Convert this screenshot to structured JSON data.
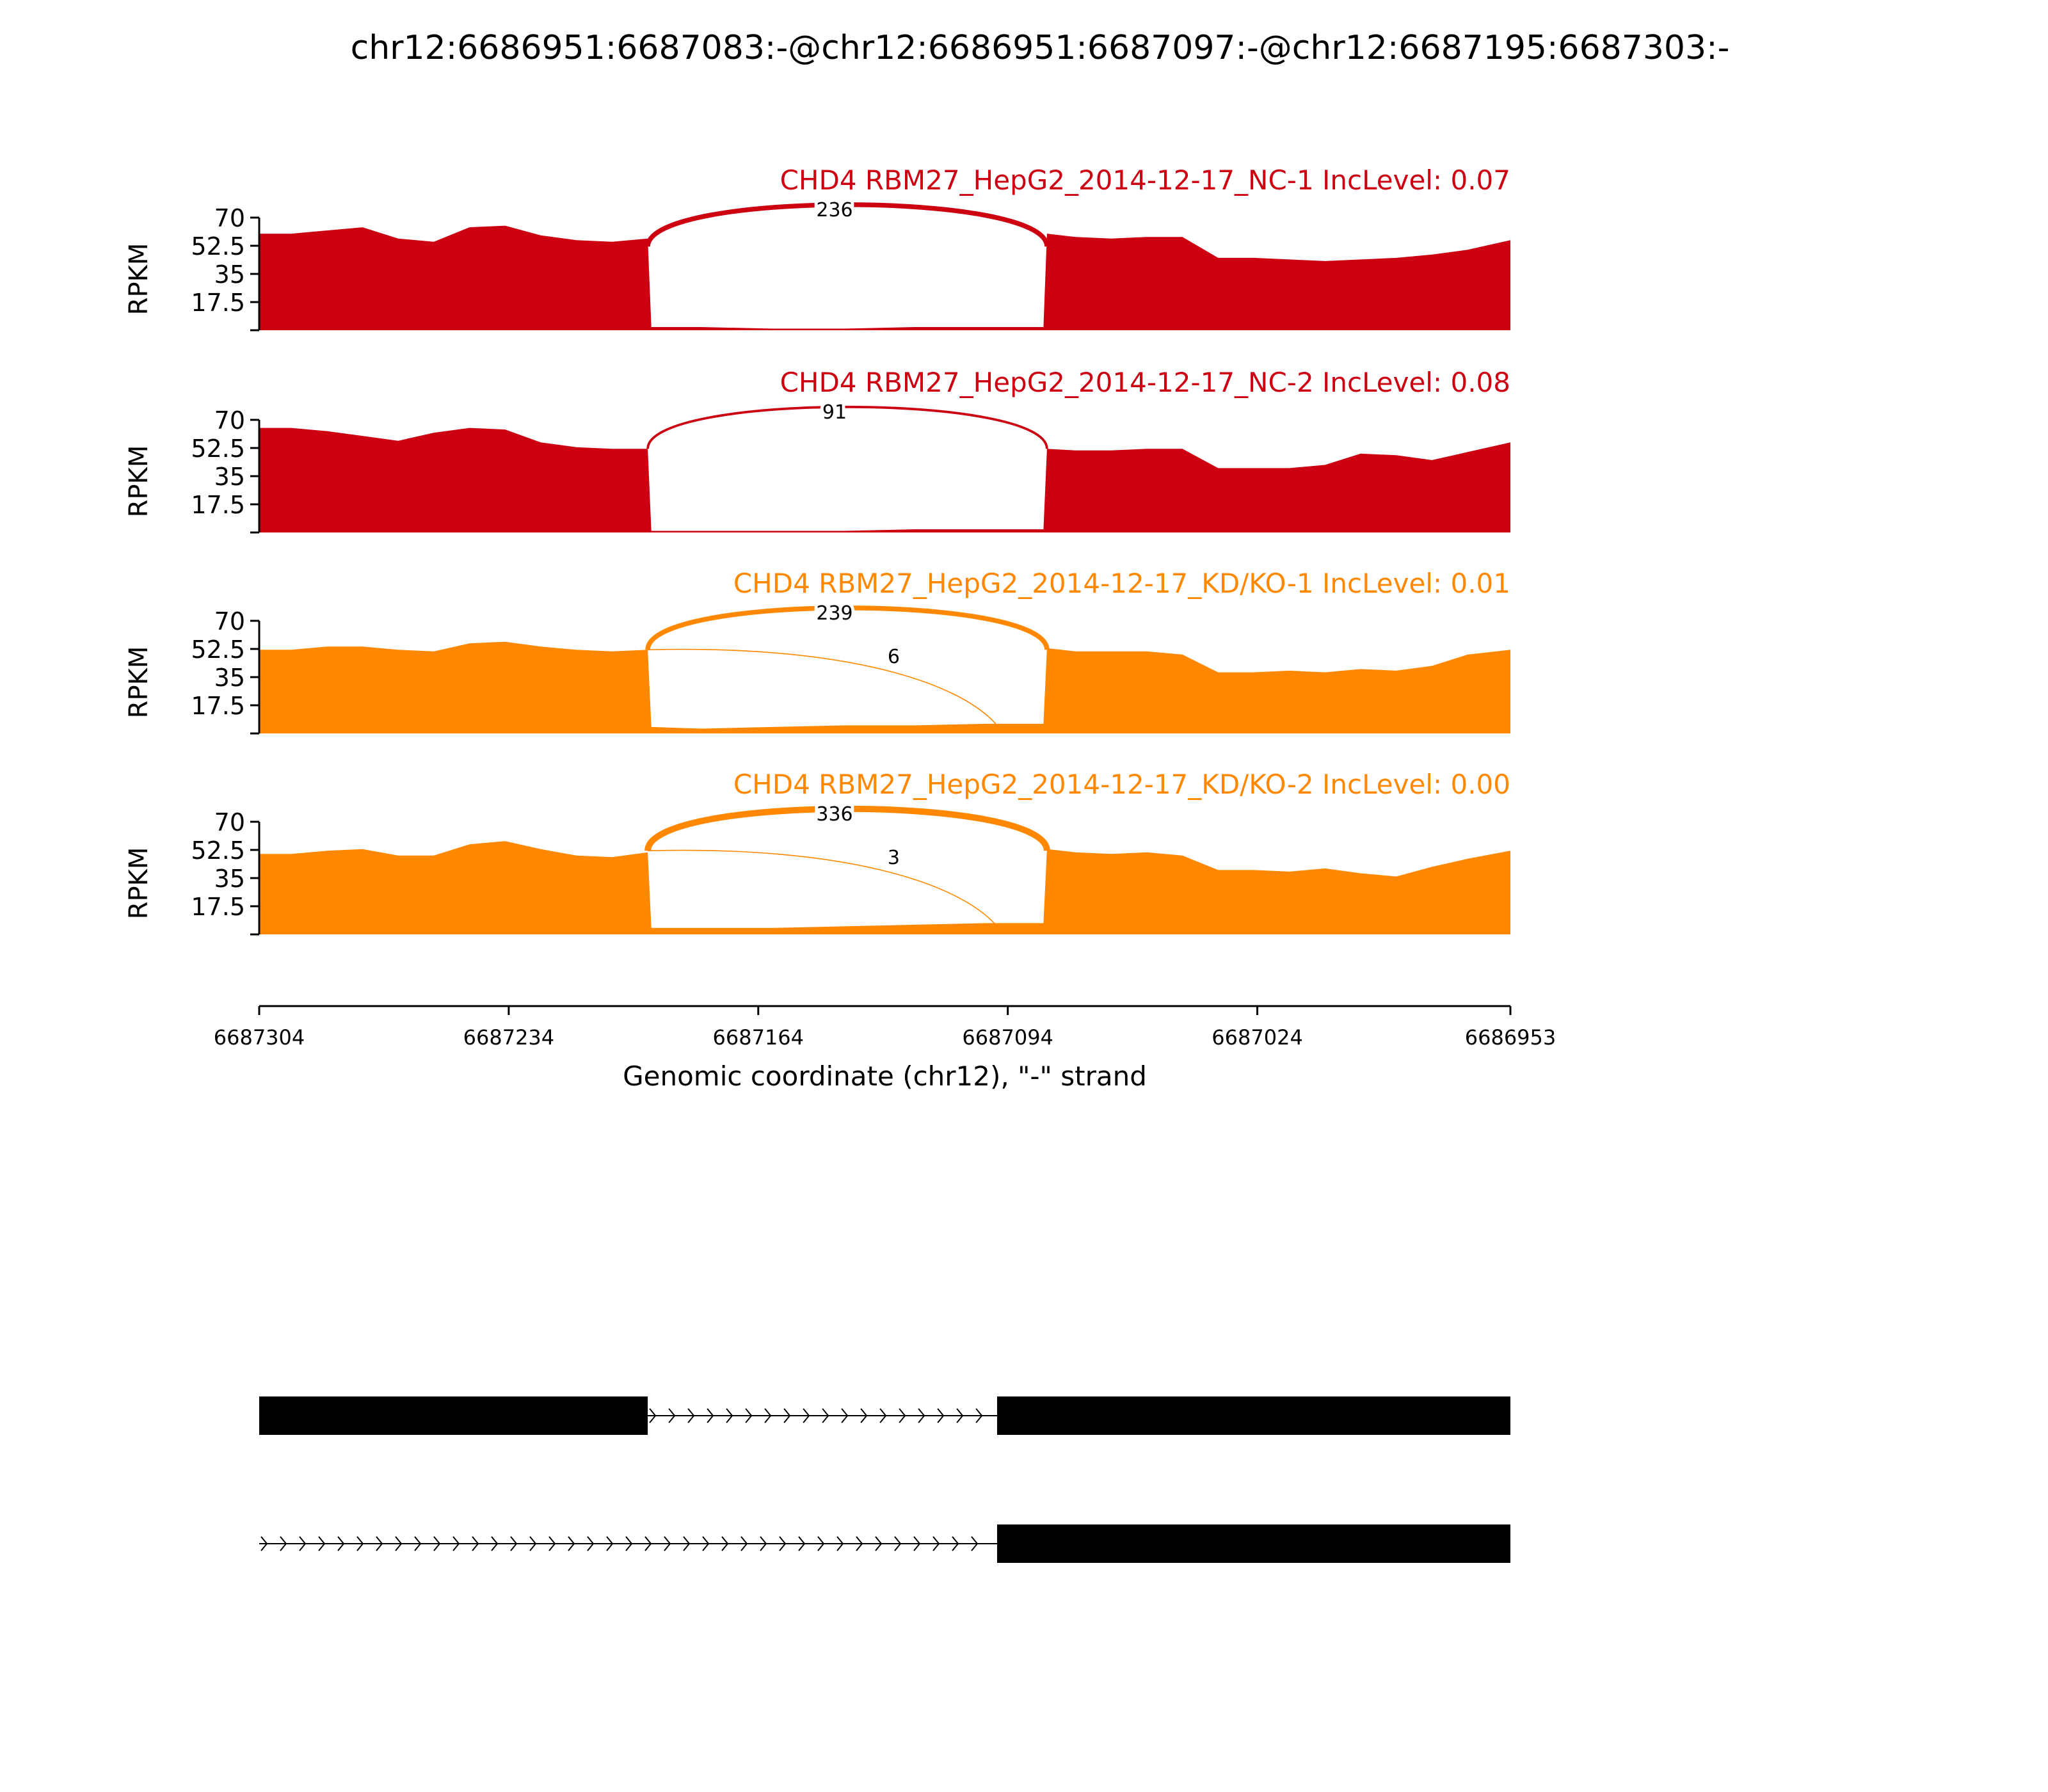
{
  "figure": {
    "title": "chr12:6686951:6687083:-@chr12:6686951:6687097:-@chr12:6687195:6687303:-"
  },
  "colors": {
    "control": "#CC0011",
    "knockdown": "#FF8800",
    "axis": "#000000",
    "gene": "#000000"
  },
  "chart_data": {
    "type": "area",
    "subtype": "sashimi",
    "x_axis": {
      "label": "Genomic coordinate (chr12), \"-\" strand",
      "start": 6687304,
      "end": 6686953,
      "reversed": true,
      "ticks": [
        6687304,
        6687234,
        6687164,
        6687094,
        6687024,
        6686953
      ],
      "tick_labels": [
        "6687304",
        "6687234",
        "6687164",
        "6687094",
        "6687024",
        "6686953"
      ]
    },
    "y_axis": {
      "label": "RPKM",
      "range": [
        0,
        70
      ],
      "ticks": [
        17.5,
        35,
        52.5,
        70
      ],
      "tick_labels": [
        "17.5",
        "35",
        "52.5",
        "70"
      ]
    },
    "panels": [
      {
        "label": "CHD4 RBM27_HepG2_2014-12-17_NC-1 IncLevel: 0.07",
        "group": "control",
        "coverage": {
          "x": [
            6687304,
            6687295,
            6687285,
            6687275,
            6687265,
            6687255,
            6687245,
            6687235,
            6687225,
            6687215,
            6687205,
            6687195,
            6687194,
            6687180,
            6687160,
            6687140,
            6687120,
            6687100,
            6687084,
            6687083,
            6687075,
            6687065,
            6687055,
            6687045,
            6687035,
            6687025,
            6687015,
            6687005,
            6686995,
            6686985,
            6686975,
            6686965,
            6686953
          ],
          "y": [
            60,
            60,
            62,
            64,
            57,
            55,
            64,
            65,
            59,
            56,
            55,
            57,
            2,
            2,
            1,
            1,
            2,
            2,
            2,
            60,
            58,
            57,
            58,
            58,
            45,
            45,
            44,
            43,
            44,
            45,
            47,
            50,
            56
          ]
        },
        "junctions": [
          {
            "donor": 6687195,
            "acceptor": 6687083,
            "count": 236,
            "label": "236"
          }
        ]
      },
      {
        "label": "CHD4 RBM27_HepG2_2014-12-17_NC-2 IncLevel: 0.08",
        "group": "control",
        "coverage": {
          "x": [
            6687304,
            6687295,
            6687285,
            6687275,
            6687265,
            6687255,
            6687245,
            6687235,
            6687225,
            6687215,
            6687205,
            6687195,
            6687194,
            6687180,
            6687160,
            6687140,
            6687120,
            6687100,
            6687084,
            6687083,
            6687075,
            6687065,
            6687055,
            6687045,
            6687035,
            6687025,
            6687015,
            6687005,
            6686995,
            6686985,
            6686975,
            6686965,
            6686953
          ],
          "y": [
            65,
            65,
            63,
            60,
            57,
            62,
            65,
            64,
            56,
            53,
            52,
            52,
            1,
            1,
            1,
            1,
            2,
            2,
            2,
            52,
            51,
            51,
            52,
            52,
            40,
            40,
            40,
            42,
            49,
            48,
            45,
            50,
            56
          ]
        },
        "junctions": [
          {
            "donor": 6687195,
            "acceptor": 6687083,
            "count": 91,
            "label": "91"
          }
        ]
      },
      {
        "label": "CHD4 RBM27_HepG2_2014-12-17_KD/KO-1 IncLevel: 0.01",
        "group": "knockdown",
        "coverage": {
          "x": [
            6687304,
            6687295,
            6687285,
            6687275,
            6687265,
            6687255,
            6687245,
            6687235,
            6687225,
            6687215,
            6687205,
            6687195,
            6687194,
            6687180,
            6687160,
            6687140,
            6687120,
            6687100,
            6687084,
            6687083,
            6687075,
            6687065,
            6687055,
            6687045,
            6687035,
            6687025,
            6687015,
            6687005,
            6686995,
            6686985,
            6686975,
            6686965,
            6686953
          ],
          "y": [
            52,
            52,
            54,
            54,
            52,
            51,
            56,
            57,
            54,
            52,
            51,
            52,
            4,
            3,
            4,
            5,
            5,
            6,
            6,
            53,
            51,
            51,
            51,
            49,
            38,
            38,
            39,
            38,
            40,
            39,
            42,
            49,
            52
          ]
        },
        "junctions": [
          {
            "donor": 6687195,
            "acceptor": 6687083,
            "count": 239,
            "label": "239"
          },
          {
            "donor": 6687195,
            "acceptor": 6687097,
            "count": 6,
            "label": "6"
          }
        ]
      },
      {
        "label": "CHD4 RBM27_HepG2_2014-12-17_KD/KO-2 IncLevel: 0.00",
        "group": "knockdown",
        "coverage": {
          "x": [
            6687304,
            6687295,
            6687285,
            6687275,
            6687265,
            6687255,
            6687245,
            6687235,
            6687225,
            6687215,
            6687205,
            6687195,
            6687194,
            6687180,
            6687160,
            6687140,
            6687120,
            6687100,
            6687084,
            6687083,
            6687075,
            6687065,
            6687055,
            6687045,
            6687035,
            6687025,
            6687015,
            6687005,
            6686995,
            6686985,
            6686975,
            6686965,
            6686953
          ],
          "y": [
            50,
            50,
            52,
            53,
            49,
            49,
            56,
            58,
            53,
            49,
            48,
            51,
            4,
            4,
            4,
            5,
            6,
            7,
            7,
            53,
            51,
            50,
            51,
            49,
            40,
            40,
            39,
            41,
            38,
            36,
            42,
            47,
            52
          ]
        },
        "junctions": [
          {
            "donor": 6687195,
            "acceptor": 6687083,
            "count": 336,
            "label": "336"
          },
          {
            "donor": 6687195,
            "acceptor": 6687097,
            "count": 3,
            "label": "3"
          }
        ]
      }
    ],
    "transcripts": [
      {
        "strand": "-",
        "exons": [
          [
            6687195,
            6687304
          ],
          [
            6686953,
            6687097
          ]
        ]
      },
      {
        "strand": "-",
        "exons": [
          [
            6686953,
            6687097
          ]
        ],
        "intron_extends_to": 6687304
      }
    ]
  }
}
